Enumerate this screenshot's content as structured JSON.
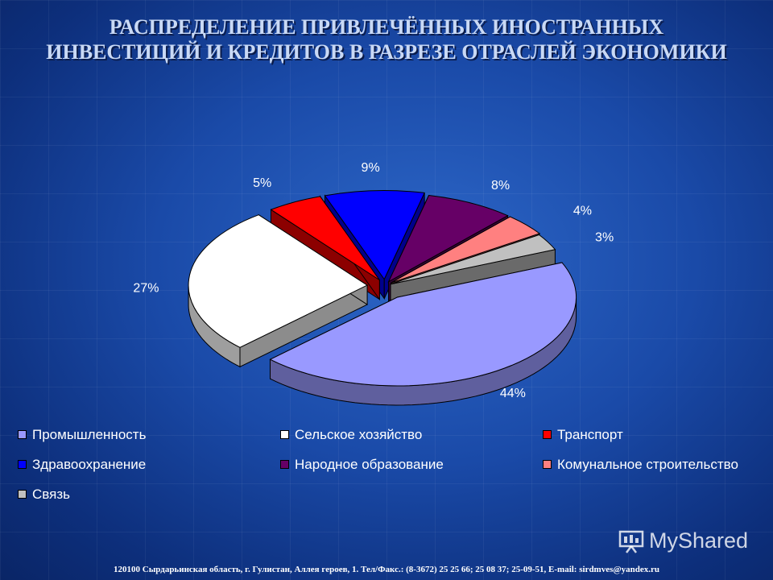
{
  "title": {
    "line1": "РАСПРЕДЕЛЕНИЕ ПРИВЛЕЧЁННЫХ ИНОСТРАННЫХ",
    "line2": "ИНВЕСТИЦИЙ И КРЕДИТОВ В РАЗРЕЗЕ ОТРАСЛЕЙ ЭКОНОМИКИ"
  },
  "chart_data": {
    "type": "pie",
    "exploded": true,
    "three_d": true,
    "legend_position": "bottom",
    "slices": [
      {
        "name": "Промышленность",
        "value": 44,
        "label": "44%",
        "color": "#9999ff"
      },
      {
        "name": "Сельское хозяйство",
        "value": 27,
        "label": "27%",
        "color": "#ffffff"
      },
      {
        "name": "Транспорт",
        "value": 5,
        "label": "5%",
        "color": "#ff0000"
      },
      {
        "name": "Здравоохранение",
        "value": 9,
        "label": "9%",
        "color": "#0000ff"
      },
      {
        "name": "Народное образование",
        "value": 8,
        "label": "8%",
        "color": "#660066"
      },
      {
        "name": "Комунальное строительство",
        "value": 4,
        "label": "4%",
        "color": "#ff8080"
      },
      {
        "name": "Связь",
        "value": 3,
        "label": "3%",
        "color": "#c0c0c0"
      }
    ]
  },
  "watermark": "MyShared",
  "footer": "120100 Сырдарьинская область, г. Гулистан, Аллея героев, 1. Тел/Факс.: (8-3672) 25 25 66; 25 08 37; 25-09-51, E-mail: sirdmves@yandex.ru"
}
